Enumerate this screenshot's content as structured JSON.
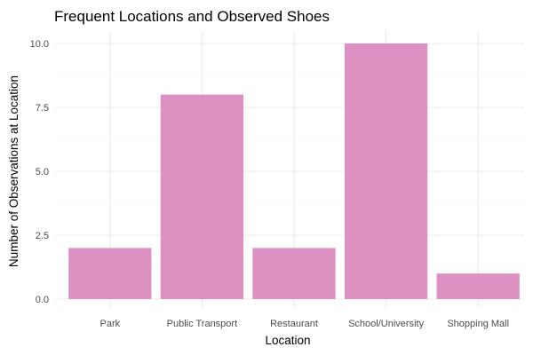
{
  "chart_data": {
    "type": "bar",
    "title": "Frequent Locations and Observed Shoes",
    "xlabel": "Location",
    "ylabel": "Number of Observations at Location",
    "categories": [
      "Park",
      "Public Transport",
      "Restaurant",
      "School/University",
      "Shopping Mall"
    ],
    "values": [
      2,
      8,
      2,
      10,
      1
    ],
    "ylim": [
      0,
      10
    ],
    "yticks": [
      0,
      2.5,
      5,
      7.5,
      10
    ],
    "ytick_labels": [
      "0.0",
      "2.5",
      "5.0",
      "7.5",
      "10.0"
    ],
    "grid": true,
    "bar_color": "#dd91c3",
    "grid_major_color": "#ebebeb",
    "grid_minor_color": "#f5f5f5"
  }
}
